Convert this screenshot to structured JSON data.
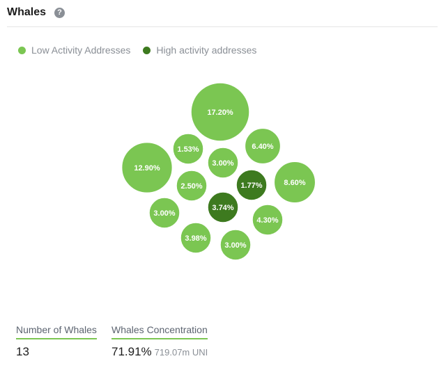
{
  "header": {
    "title": "Whales",
    "help_icon": "question-icon"
  },
  "legend": [
    {
      "label": "Low Activity Addresses",
      "color": "#7bc652"
    },
    {
      "label": "High activity addresses",
      "color": "#3d7a1f"
    }
  ],
  "chart_data": {
    "type": "bubble",
    "title": "Whales",
    "series": [
      {
        "name": "Low Activity Addresses",
        "color": "#7bc652",
        "values": [
          17.2,
          12.9,
          8.6,
          6.4,
          4.3,
          3.98,
          3.0,
          3.0,
          3.0,
          2.5,
          1.53
        ]
      },
      {
        "name": "High activity addresses",
        "color": "#3d7a1f",
        "values": [
          3.74,
          1.77
        ]
      }
    ],
    "bubbles": [
      {
        "label": "17.20%",
        "value": 17.2,
        "group": "low"
      },
      {
        "label": "12.90%",
        "value": 12.9,
        "group": "low"
      },
      {
        "label": "8.60%",
        "value": 8.6,
        "group": "low"
      },
      {
        "label": "6.40%",
        "value": 6.4,
        "group": "low"
      },
      {
        "label": "4.30%",
        "value": 4.3,
        "group": "low"
      },
      {
        "label": "3.98%",
        "value": 3.98,
        "group": "low"
      },
      {
        "label": "3.74%",
        "value": 3.74,
        "group": "high"
      },
      {
        "label": "3.00%",
        "value": 3.0,
        "group": "low"
      },
      {
        "label": "3.00%",
        "value": 3.0,
        "group": "low"
      },
      {
        "label": "3.00%",
        "value": 3.0,
        "group": "low"
      },
      {
        "label": "2.50%",
        "value": 2.5,
        "group": "low"
      },
      {
        "label": "1.77%",
        "value": 1.77,
        "group": "high"
      },
      {
        "label": "1.53%",
        "value": 1.53,
        "group": "low"
      }
    ]
  },
  "stats": {
    "number_of_whales": {
      "label": "Number of Whales",
      "value": "13"
    },
    "whales_concentration": {
      "label": "Whales Concentration",
      "value": "71.91%",
      "sub": "719.07m UNI"
    }
  }
}
